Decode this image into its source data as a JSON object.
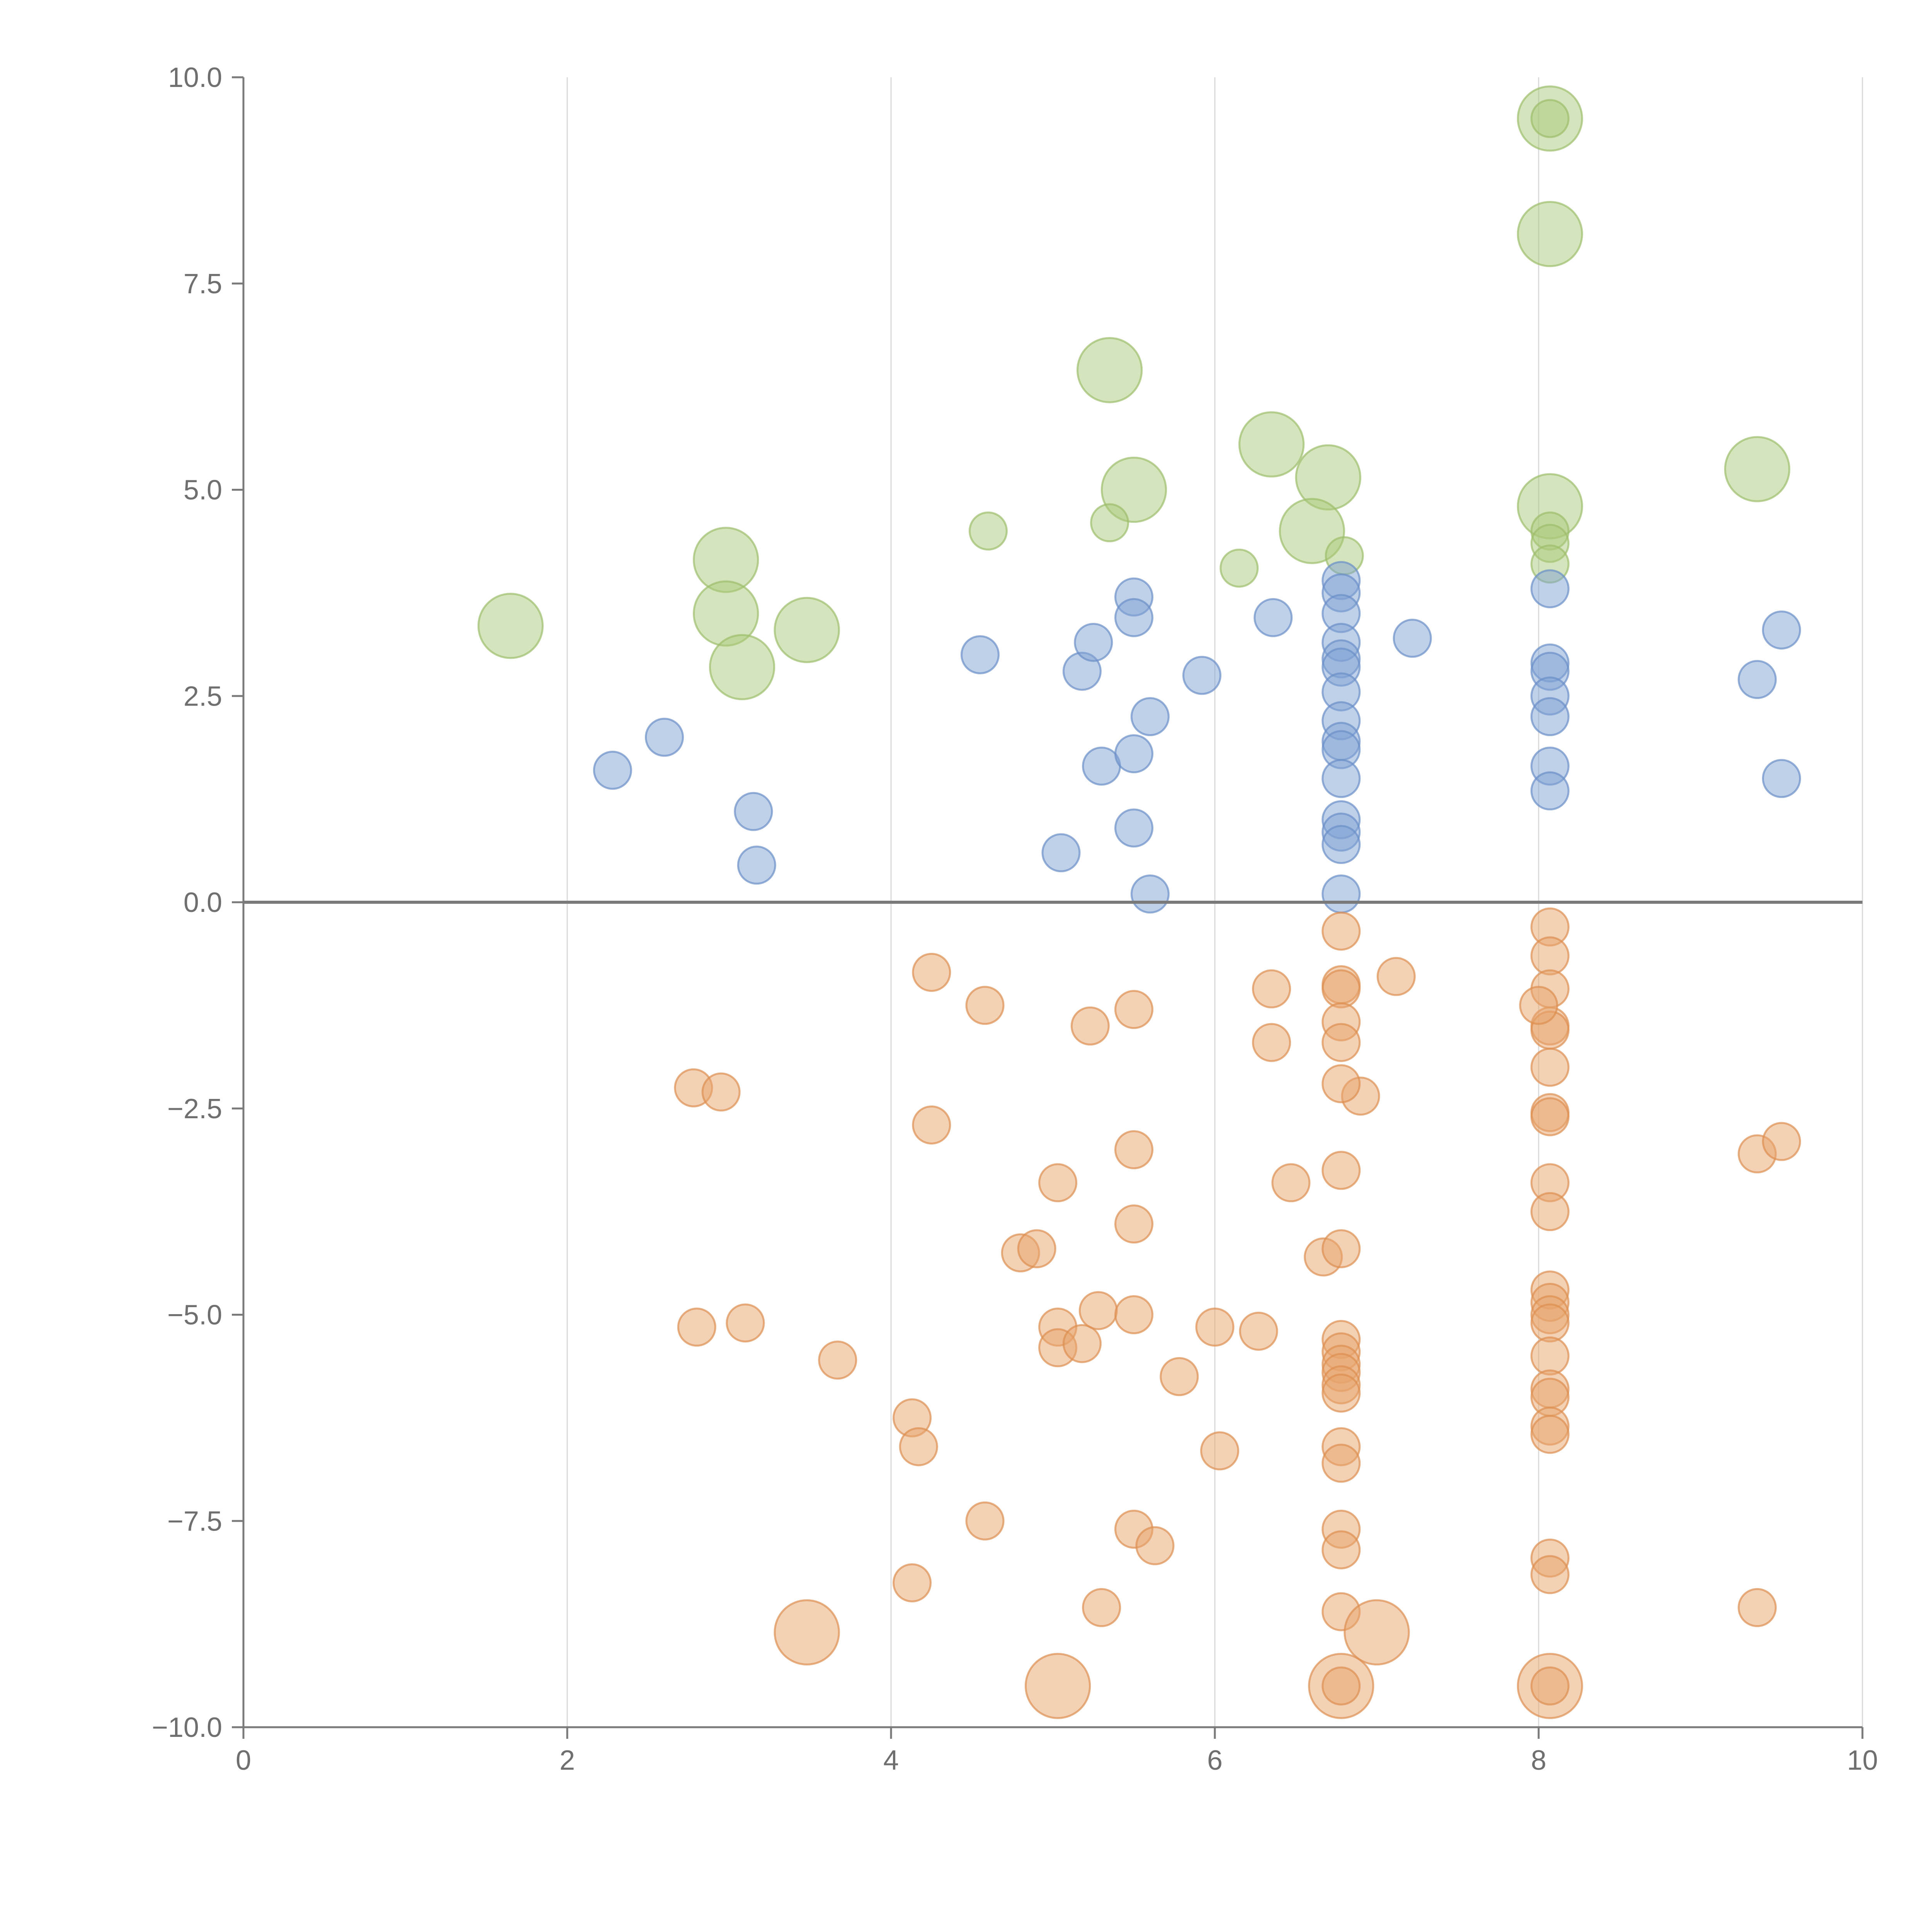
{
  "chart_data": {
    "type": "scatter",
    "title": "",
    "xlabel": "",
    "ylabel": "",
    "xlim": [
      0,
      10
    ],
    "ylim": [
      -10,
      10
    ],
    "grid": "vertical",
    "zero_line": true,
    "x_ticks": [
      0,
      2,
      4,
      6,
      8,
      10
    ],
    "x_tick_labels": [
      "0",
      "2",
      "4",
      "6",
      "8",
      "10"
    ],
    "y_ticks": [
      10,
      7.5,
      5,
      2.5,
      0,
      -2.5,
      -5,
      -7.5,
      -10
    ],
    "y_tick_labels": [
      "10.0",
      "7.5",
      "5.0",
      "2.5",
      "0.0",
      "−2.5",
      "−5.0",
      "−7.5",
      "−10.0"
    ],
    "series": [
      {
        "name": "green",
        "color": "#a9c97a",
        "stroke": "#9cbd6b",
        "opacity": 0.5,
        "points": [
          {
            "x": 8.07,
            "y": 9.5,
            "s": 3
          },
          {
            "x": 8.07,
            "y": 9.5,
            "s": 1
          },
          {
            "x": 8.07,
            "y": 8.1,
            "s": 3
          },
          {
            "x": 5.35,
            "y": 6.45,
            "s": 3
          },
          {
            "x": 6.35,
            "y": 5.55,
            "s": 3
          },
          {
            "x": 9.35,
            "y": 5.25,
            "s": 3
          },
          {
            "x": 6.7,
            "y": 5.15,
            "s": 3
          },
          {
            "x": 5.5,
            "y": 5.0,
            "s": 3
          },
          {
            "x": 8.07,
            "y": 4.8,
            "s": 3
          },
          {
            "x": 6.6,
            "y": 4.5,
            "s": 3
          },
          {
            "x": 2.98,
            "y": 4.15,
            "s": 3
          },
          {
            "x": 3.48,
            "y": 3.3,
            "s": 3
          },
          {
            "x": 2.98,
            "y": 3.5,
            "s": 3
          },
          {
            "x": 1.65,
            "y": 3.35,
            "s": 3
          },
          {
            "x": 3.08,
            "y": 2.85,
            "s": 3
          },
          {
            "x": 4.6,
            "y": 4.5,
            "s": 1
          },
          {
            "x": 5.35,
            "y": 4.6,
            "s": 1
          },
          {
            "x": 6.15,
            "y": 4.05,
            "s": 1
          },
          {
            "x": 6.8,
            "y": 4.2,
            "s": 1
          },
          {
            "x": 8.07,
            "y": 4.5,
            "s": 1
          },
          {
            "x": 8.07,
            "y": 4.35,
            "s": 1
          },
          {
            "x": 8.07,
            "y": 4.1,
            "s": 1
          }
        ]
      },
      {
        "name": "blue",
        "color": "#7fa1d3",
        "stroke": "#6a8fc7",
        "opacity": 0.5,
        "points": [
          {
            "x": 2.28,
            "y": 1.6
          },
          {
            "x": 2.6,
            "y": 2.0
          },
          {
            "x": 3.15,
            "y": 1.1
          },
          {
            "x": 3.17,
            "y": 0.45
          },
          {
            "x": 4.55,
            "y": 3.0
          },
          {
            "x": 5.05,
            "y": 0.6
          },
          {
            "x": 5.18,
            "y": 2.8
          },
          {
            "x": 5.25,
            "y": 3.15
          },
          {
            "x": 5.3,
            "y": 1.65
          },
          {
            "x": 5.5,
            "y": 3.7
          },
          {
            "x": 5.5,
            "y": 3.45
          },
          {
            "x": 5.5,
            "y": 1.8
          },
          {
            "x": 5.5,
            "y": 0.9
          },
          {
            "x": 5.6,
            "y": 2.25
          },
          {
            "x": 5.6,
            "y": 0.1
          },
          {
            "x": 5.92,
            "y": 2.75
          },
          {
            "x": 6.36,
            "y": 3.45
          },
          {
            "x": 7.22,
            "y": 3.2
          },
          {
            "x": 6.78,
            "y": 3.9
          },
          {
            "x": 6.78,
            "y": 3.75
          },
          {
            "x": 6.78,
            "y": 3.5
          },
          {
            "x": 6.78,
            "y": 3.15
          },
          {
            "x": 6.78,
            "y": 2.95
          },
          {
            "x": 6.78,
            "y": 2.85
          },
          {
            "x": 6.78,
            "y": 2.55
          },
          {
            "x": 6.78,
            "y": 2.2
          },
          {
            "x": 6.78,
            "y": 1.95
          },
          {
            "x": 6.78,
            "y": 1.85
          },
          {
            "x": 6.78,
            "y": 1.5
          },
          {
            "x": 6.78,
            "y": 1.0
          },
          {
            "x": 6.78,
            "y": 0.85
          },
          {
            "x": 6.78,
            "y": 0.7
          },
          {
            "x": 6.78,
            "y": 0.1
          },
          {
            "x": 8.07,
            "y": 3.8
          },
          {
            "x": 8.07,
            "y": 2.9
          },
          {
            "x": 8.07,
            "y": 2.8
          },
          {
            "x": 8.07,
            "y": 2.5
          },
          {
            "x": 8.07,
            "y": 2.25
          },
          {
            "x": 8.07,
            "y": 1.65
          },
          {
            "x": 8.07,
            "y": 1.35
          },
          {
            "x": 9.35,
            "y": 2.7
          },
          {
            "x": 9.5,
            "y": 3.3
          },
          {
            "x": 9.5,
            "y": 1.5
          }
        ]
      },
      {
        "name": "orange",
        "color": "#e8a36b",
        "stroke": "#dd8f50",
        "opacity": 0.5,
        "points": [
          {
            "x": 2.78,
            "y": -2.25
          },
          {
            "x": 2.95,
            "y": -2.3
          },
          {
            "x": 2.8,
            "y": -5.15
          },
          {
            "x": 3.1,
            "y": -5.1
          },
          {
            "x": 3.67,
            "y": -5.55
          },
          {
            "x": 4.13,
            "y": -6.25
          },
          {
            "x": 4.17,
            "y": -6.6
          },
          {
            "x": 4.25,
            "y": -0.85
          },
          {
            "x": 4.25,
            "y": -2.7
          },
          {
            "x": 4.58,
            "y": -1.25
          },
          {
            "x": 4.58,
            "y": -7.5
          },
          {
            "x": 4.8,
            "y": -4.25
          },
          {
            "x": 4.9,
            "y": -4.2
          },
          {
            "x": 5.03,
            "y": -3.4
          },
          {
            "x": 5.03,
            "y": -5.15
          },
          {
            "x": 5.03,
            "y": -5.4
          },
          {
            "x": 5.18,
            "y": -5.35
          },
          {
            "x": 5.23,
            "y": -1.5
          },
          {
            "x": 5.28,
            "y": -4.95
          },
          {
            "x": 5.3,
            "y": -8.55
          },
          {
            "x": 5.5,
            "y": -1.3
          },
          {
            "x": 5.5,
            "y": -3.0
          },
          {
            "x": 5.5,
            "y": -3.9
          },
          {
            "x": 5.5,
            "y": -5.0
          },
          {
            "x": 5.5,
            "y": -7.6
          },
          {
            "x": 5.63,
            "y": -7.8
          },
          {
            "x": 5.78,
            "y": -5.75
          },
          {
            "x": 6.0,
            "y": -5.15
          },
          {
            "x": 6.03,
            "y": -6.65
          },
          {
            "x": 6.27,
            "y": -5.2
          },
          {
            "x": 6.35,
            "y": -1.05
          },
          {
            "x": 6.35,
            "y": -1.7
          },
          {
            "x": 6.47,
            "y": -3.4
          },
          {
            "x": 6.67,
            "y": -4.3
          },
          {
            "x": 6.9,
            "y": -2.35
          },
          {
            "x": 7.12,
            "y": -0.9
          },
          {
            "x": 9.35,
            "y": -3.05
          },
          {
            "x": 9.5,
            "y": -2.9
          },
          {
            "x": 9.35,
            "y": -8.55
          },
          {
            "x": 4.13,
            "y": -8.25
          },
          {
            "x": 6.78,
            "y": -0.35
          },
          {
            "x": 6.78,
            "y": -1.0
          },
          {
            "x": 6.78,
            "y": -1.05
          },
          {
            "x": 6.78,
            "y": -1.45
          },
          {
            "x": 6.78,
            "y": -1.7
          },
          {
            "x": 6.78,
            "y": -2.2
          },
          {
            "x": 6.78,
            "y": -3.25
          },
          {
            "x": 6.78,
            "y": -4.2
          },
          {
            "x": 6.78,
            "y": -5.3
          },
          {
            "x": 6.78,
            "y": -5.45
          },
          {
            "x": 6.78,
            "y": -5.6
          },
          {
            "x": 6.78,
            "y": -5.7
          },
          {
            "x": 6.78,
            "y": -5.85
          },
          {
            "x": 6.78,
            "y": -5.95
          },
          {
            "x": 6.78,
            "y": -6.6
          },
          {
            "x": 6.78,
            "y": -6.8
          },
          {
            "x": 6.78,
            "y": -7.6
          },
          {
            "x": 6.78,
            "y": -7.85
          },
          {
            "x": 6.78,
            "y": -8.6
          },
          {
            "x": 8.07,
            "y": -0.3
          },
          {
            "x": 8.07,
            "y": -0.65
          },
          {
            "x": 8.07,
            "y": -1.05
          },
          {
            "x": 8.07,
            "y": -1.5
          },
          {
            "x": 8.07,
            "y": -1.55
          },
          {
            "x": 8.0,
            "y": -1.25
          },
          {
            "x": 8.07,
            "y": -2.0
          },
          {
            "x": 8.07,
            "y": -2.55
          },
          {
            "x": 8.07,
            "y": -2.6
          },
          {
            "x": 8.07,
            "y": -3.4
          },
          {
            "x": 8.07,
            "y": -3.75
          },
          {
            "x": 8.07,
            "y": -4.7
          },
          {
            "x": 8.07,
            "y": -4.85
          },
          {
            "x": 8.07,
            "y": -5.0
          },
          {
            "x": 8.07,
            "y": -5.1
          },
          {
            "x": 8.07,
            "y": -5.5
          },
          {
            "x": 8.07,
            "y": -5.9
          },
          {
            "x": 8.07,
            "y": -6.0
          },
          {
            "x": 8.07,
            "y": -6.35
          },
          {
            "x": 8.07,
            "y": -6.45
          },
          {
            "x": 8.07,
            "y": -7.95
          },
          {
            "x": 8.07,
            "y": -8.15
          },
          {
            "x": 3.48,
            "y": -8.85,
            "s": 3
          },
          {
            "x": 5.03,
            "y": -9.5,
            "s": 3
          },
          {
            "x": 6.78,
            "y": -9.5,
            "s": 3
          },
          {
            "x": 7.0,
            "y": -8.85,
            "s": 3
          },
          {
            "x": 8.07,
            "y": -9.5,
            "s": 3
          },
          {
            "x": 6.78,
            "y": -9.5
          },
          {
            "x": 8.07,
            "y": -9.5
          }
        ]
      }
    ]
  }
}
